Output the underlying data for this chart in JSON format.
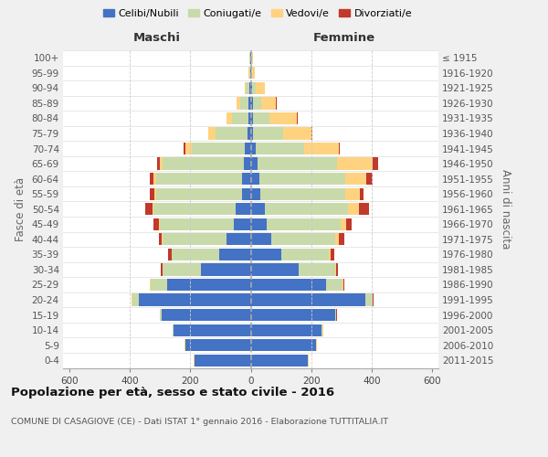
{
  "age_groups": [
    "0-4",
    "5-9",
    "10-14",
    "15-19",
    "20-24",
    "25-29",
    "30-34",
    "35-39",
    "40-44",
    "45-49",
    "50-54",
    "55-59",
    "60-64",
    "65-69",
    "70-74",
    "75-79",
    "80-84",
    "85-89",
    "90-94",
    "95-99",
    "100+"
  ],
  "birth_years": [
    "2011-2015",
    "2006-2010",
    "2001-2005",
    "1996-2000",
    "1991-1995",
    "1986-1990",
    "1981-1985",
    "1976-1980",
    "1971-1975",
    "1966-1970",
    "1961-1965",
    "1956-1960",
    "1951-1955",
    "1946-1950",
    "1941-1945",
    "1936-1940",
    "1931-1935",
    "1926-1930",
    "1921-1925",
    "1916-1920",
    "≤ 1915"
  ],
  "males_celibi": [
    185,
    215,
    255,
    295,
    370,
    275,
    165,
    105,
    80,
    55,
    50,
    28,
    28,
    22,
    20,
    12,
    8,
    7,
    4,
    2,
    2
  ],
  "males_coniugati": [
    2,
    2,
    3,
    4,
    22,
    55,
    125,
    155,
    210,
    245,
    270,
    285,
    285,
    270,
    175,
    105,
    55,
    28,
    12,
    3,
    2
  ],
  "males_vedovi": [
    1,
    1,
    1,
    1,
    2,
    2,
    2,
    2,
    3,
    3,
    5,
    5,
    8,
    8,
    22,
    22,
    18,
    12,
    5,
    2,
    1
  ],
  "males_divorziati": [
    0,
    0,
    0,
    1,
    1,
    2,
    5,
    12,
    10,
    18,
    22,
    14,
    13,
    10,
    4,
    0,
    0,
    0,
    0,
    0,
    0
  ],
  "females_nubili": [
    188,
    215,
    235,
    278,
    380,
    248,
    158,
    100,
    68,
    52,
    48,
    32,
    28,
    22,
    18,
    8,
    8,
    7,
    4,
    2,
    2
  ],
  "females_coniugate": [
    2,
    2,
    3,
    4,
    22,
    55,
    120,
    158,
    210,
    245,
    272,
    280,
    285,
    262,
    160,
    100,
    55,
    28,
    12,
    3,
    2
  ],
  "females_vedove": [
    1,
    1,
    1,
    1,
    2,
    3,
    5,
    7,
    14,
    18,
    38,
    48,
    68,
    118,
    112,
    92,
    88,
    48,
    30,
    10,
    3
  ],
  "females_divorziate": [
    0,
    0,
    0,
    1,
    1,
    3,
    5,
    10,
    18,
    18,
    32,
    14,
    22,
    18,
    3,
    3,
    3,
    3,
    0,
    0,
    0
  ],
  "colors": {
    "celibi_nubili": "#4472C4",
    "coniugati_e": "#C8DAAA",
    "vedovi_e": "#FFD280",
    "divorziati_e": "#C0392B"
  },
  "xlim": 620,
  "title": "Popolazione per età, sesso e stato civile - 2016",
  "subtitle": "COMUNE DI CASAGIOVE (CE) - Dati ISTAT 1° gennaio 2016 - Elaborazione TUTTITALIA.IT",
  "maschi_label": "Maschi",
  "femmine_label": "Femmine",
  "ylabel_left": "Fasce di età",
  "ylabel_right": "Anni di nascita",
  "background_color": "#f0f0f0",
  "plot_bg_color": "#ffffff"
}
